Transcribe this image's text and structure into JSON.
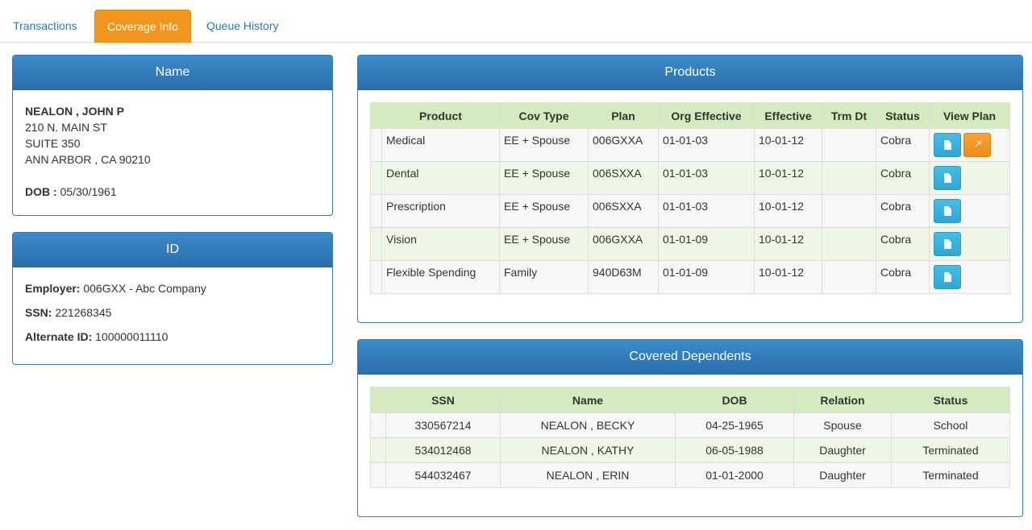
{
  "tabs": [
    {
      "label": "Transactions",
      "active": false
    },
    {
      "label": "Coverage Info",
      "active": true
    },
    {
      "label": "Queue History",
      "active": false
    }
  ],
  "name_panel": {
    "title": "Name",
    "full_name": "NEALON , JOHN P",
    "address_line1": "210 N. MAIN ST",
    "address_line2": "SUITE 350",
    "city_state_zip": "ANN ARBOR , CA 90210",
    "dob_label": "DOB :",
    "dob_value": "05/30/1961"
  },
  "id_panel": {
    "title": "ID",
    "employer_label": "Employer:",
    "employer_value": "006GXX - Abc Company",
    "ssn_label": "SSN:",
    "ssn_value": "221268345",
    "alt_id_label": "Alternate ID:",
    "alt_id_value": "100000011110"
  },
  "products": {
    "title": "Products",
    "columns": [
      "Product",
      "Cov Type",
      "Plan",
      "Org Effective",
      "Effective",
      "Trm Dt",
      "Status",
      "View Plan"
    ],
    "rows": [
      {
        "product": "Medical",
        "cov_type": "EE + Spouse",
        "plan": "006GXXA",
        "org_effective": "01-01-03",
        "effective": "10-01-12",
        "trm_dt": "",
        "status": "Cobra",
        "pin": true
      },
      {
        "product": "Dental",
        "cov_type": "EE + Spouse",
        "plan": "006SXXA",
        "org_effective": "01-01-03",
        "effective": "10-01-12",
        "trm_dt": "",
        "status": "Cobra",
        "pin": false
      },
      {
        "product": "Prescription",
        "cov_type": "EE + Spouse",
        "plan": "006SXXA",
        "org_effective": "01-01-03",
        "effective": "10-01-12",
        "trm_dt": "",
        "status": "Cobra",
        "pin": false
      },
      {
        "product": "Vision",
        "cov_type": "EE + Spouse",
        "plan": "006GXXA",
        "org_effective": "01-01-09",
        "effective": "10-01-12",
        "trm_dt": "",
        "status": "Cobra",
        "pin": false
      },
      {
        "product": "Flexible Spending",
        "cov_type": "Family",
        "plan": "940D63M",
        "org_effective": "01-01-09",
        "effective": "10-01-12",
        "trm_dt": "",
        "status": "Cobra",
        "pin": false
      }
    ]
  },
  "dependents": {
    "title": "Covered Dependents",
    "columns": [
      "SSN",
      "Name",
      "DOB",
      "Relation",
      "Status"
    ],
    "rows": [
      {
        "ssn": "330567214",
        "name": "NEALON , BECKY",
        "dob": "04-25-1965",
        "relation": "Spouse",
        "status": "School"
      },
      {
        "ssn": "534012468",
        "name": "NEALON , KATHY",
        "dob": "06-05-1988",
        "relation": "Daughter",
        "status": "Terminated"
      },
      {
        "ssn": "544032467",
        "name": "NEALON , ERIN",
        "dob": "01-01-2000",
        "relation": "Daughter",
        "status": "Terminated"
      }
    ]
  },
  "icons": {
    "view_plan": "document-icon",
    "pin": "pushpin-icon"
  },
  "colors": {
    "accent_tab": "#f0961f",
    "panel_header": "#2f74b3",
    "table_header": "#d4ebc0",
    "info_button": "#39b3d7",
    "warning_button": "#f0961f"
  }
}
